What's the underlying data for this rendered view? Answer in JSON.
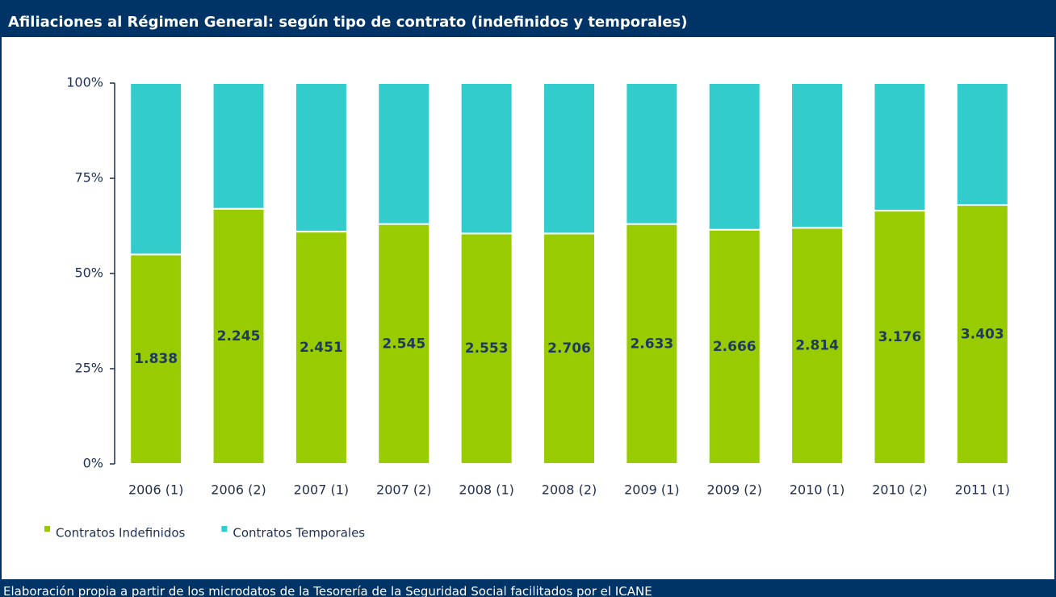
{
  "chart_data": {
    "type": "stacked_bar",
    "title": "Afiliaciones al Régimen General: según tipo de contrato (indefinidos y temporales)",
    "footnote": "Elaboración propia a partir de los microdatos de la Tesorería de la Seguridad Social facilitados por el ICANE",
    "categories": [
      "2006 (1)",
      "2006 (2)",
      "2007 (1)",
      "2007 (2)",
      "2008 (1)",
      "2008 (2)",
      "2009 (1)",
      "2009 (2)",
      "2010 (1)",
      "2010 (2)",
      "2011 (1)"
    ],
    "series": [
      {
        "name": "Contratos Indefinidos",
        "color": "#99cc00",
        "values": [
          55,
          67,
          61,
          63,
          60.5,
          60.5,
          63,
          61.5,
          62,
          66.5,
          68
        ],
        "data_labels": [
          "1.838",
          "2.245",
          "2.451",
          "2.545",
          "2.553",
          "2.706",
          "2.633",
          "2.666",
          "2.814",
          "3.176",
          "3.403"
        ]
      },
      {
        "name": "Contratos Temporales",
        "color": "#33cccc",
        "values": [
          45,
          33,
          39,
          37,
          39.5,
          39.5,
          37,
          38.5,
          38,
          33.5,
          32
        ]
      }
    ],
    "ylim": [
      0,
      100
    ],
    "yticks": [
      {
        "value": 0,
        "label": "0%"
      },
      {
        "value": 25,
        "label": "25%"
      },
      {
        "value": 50,
        "label": "50%"
      },
      {
        "value": 75,
        "label": "75%"
      },
      {
        "value": 100,
        "label": "100%"
      }
    ],
    "legend": "bottom-left"
  }
}
